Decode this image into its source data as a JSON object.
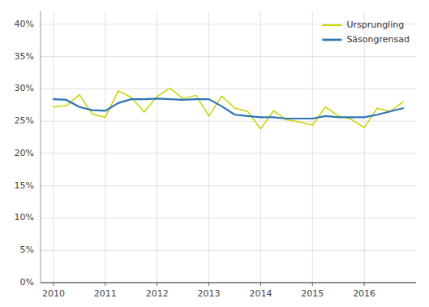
{
  "chart_data": {
    "type": "line",
    "x": [
      2010.0,
      2010.25,
      2010.5,
      2010.75,
      2011.0,
      2011.25,
      2011.5,
      2011.75,
      2012.0,
      2012.25,
      2012.5,
      2012.75,
      2013.0,
      2013.25,
      2013.5,
      2013.75,
      2014.0,
      2014.25,
      2014.5,
      2014.75,
      2015.0,
      2015.25,
      2015.5,
      2015.75,
      2016.0,
      2016.25,
      2016.5,
      2016.75
    ],
    "series": [
      {
        "name": "Ursprungling",
        "color": "#c8d400",
        "values": [
          0.272,
          0.274,
          0.291,
          0.261,
          0.256,
          0.297,
          0.287,
          0.264,
          0.288,
          0.301,
          0.285,
          0.29,
          0.258,
          0.289,
          0.27,
          0.265,
          0.238,
          0.266,
          0.252,
          0.249,
          0.244,
          0.272,
          0.258,
          0.253,
          0.24,
          0.27,
          0.265,
          0.28
        ]
      },
      {
        "name": "Säsongrensad",
        "color": "#2e75b6",
        "values": [
          0.284,
          0.283,
          0.272,
          0.267,
          0.266,
          0.278,
          0.284,
          0.284,
          0.285,
          0.284,
          0.283,
          0.284,
          0.284,
          0.273,
          0.26,
          0.258,
          0.256,
          0.256,
          0.254,
          0.254,
          0.254,
          0.258,
          0.256,
          0.256,
          0.256,
          0.26,
          0.265,
          0.27
        ]
      }
    ],
    "xlim": [
      2009.75,
      2017.0
    ],
    "xticks": [
      2010,
      2011,
      2012,
      2013,
      2014,
      2015,
      2016
    ],
    "ylim": [
      0,
      0.42
    ],
    "yticks": [
      {
        "value": 0.0,
        "label": "0%"
      },
      {
        "value": 0.05,
        "label": "5%"
      },
      {
        "value": 0.1,
        "label": "10%"
      },
      {
        "value": 0.15,
        "label": "15%"
      },
      {
        "value": 0.2,
        "label": "20%"
      },
      {
        "value": 0.25,
        "label": "25%"
      },
      {
        "value": 0.3,
        "label": "30%"
      },
      {
        "value": 0.35,
        "label": "35%"
      },
      {
        "value": 0.4,
        "label": "40%"
      }
    ],
    "grid": true,
    "legend": "upper right"
  }
}
